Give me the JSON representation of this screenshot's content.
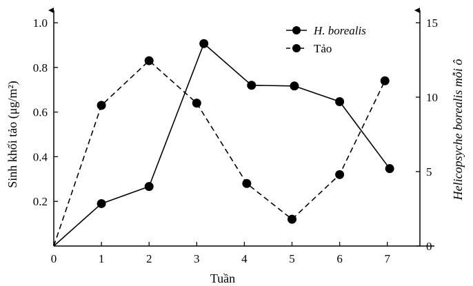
{
  "chart_data": {
    "type": "line",
    "x": [
      0,
      1,
      2,
      3,
      4,
      5,
      6,
      7
    ],
    "xlabel": "Tuần",
    "xticks": [
      "0",
      "1",
      "2",
      "3",
      "4",
      "5",
      "6",
      "7"
    ],
    "ylabel_left": "Sinh khối tảo (μg/m²)",
    "ylim_left": [
      0,
      1.0
    ],
    "yticks_left": [
      "0.2",
      "0.4",
      "0.6",
      "0.8",
      "1.0"
    ],
    "ylabel_right": "Helicopsyche borealis mỗi ô",
    "ylim_right": [
      0,
      15
    ],
    "yticks_right": [
      "0",
      "5",
      "10",
      "15"
    ],
    "legend_position": "top-right",
    "series": [
      {
        "name": "H. borealis",
        "axis": "right",
        "style": "solid",
        "x": [
          0,
          1,
          2,
          3.15,
          4.15,
          5.05,
          6,
          7.05
        ],
        "values": [
          0,
          2.85,
          4.0,
          13.6,
          10.8,
          10.75,
          9.7,
          5.2
        ]
      },
      {
        "name": "Tảo",
        "axis": "left",
        "style": "dashed",
        "x": [
          0,
          1,
          2,
          3,
          4.05,
          5,
          6,
          6.95
        ],
        "values": [
          0,
          0.63,
          0.83,
          0.64,
          0.28,
          0.12,
          0.32,
          0.74
        ]
      }
    ]
  }
}
